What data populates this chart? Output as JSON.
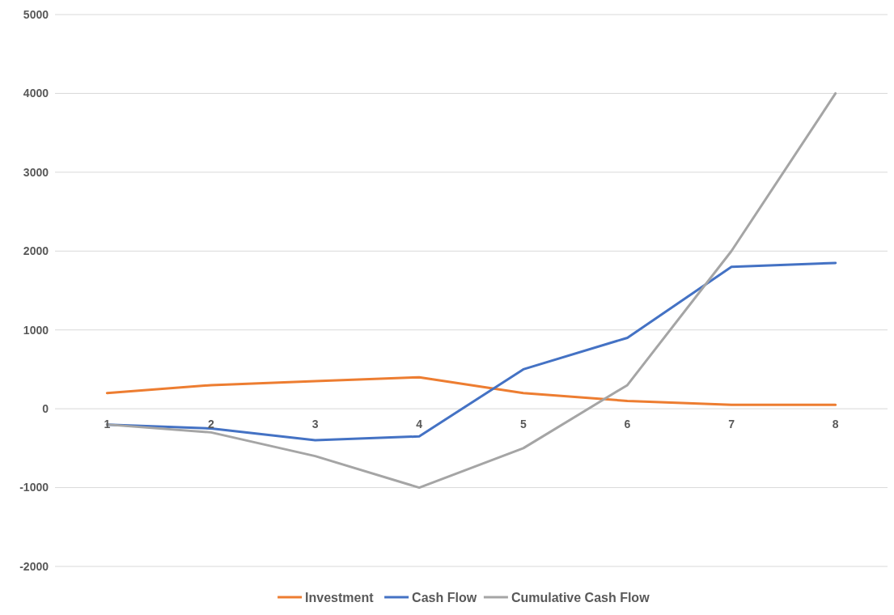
{
  "chart_data": {
    "type": "line",
    "categories": [
      "1",
      "2",
      "3",
      "4",
      "5",
      "6",
      "7",
      "8"
    ],
    "series": [
      {
        "name": "Investment",
        "color": "#ed7d31",
        "values": [
          200,
          300,
          350,
          400,
          200,
          100,
          50,
          50
        ]
      },
      {
        "name": "Cash Flow",
        "color": "#4472c4",
        "values": [
          -200,
          -250,
          -400,
          -350,
          500,
          900,
          1800,
          1850
        ]
      },
      {
        "name": "Cumulative Cash Flow",
        "color": "#a5a5a5",
        "values": [
          -200,
          -300,
          -600,
          -1000,
          -500,
          300,
          2000,
          4000
        ]
      }
    ],
    "ylim": [
      -2000,
      5000
    ],
    "yticks": [
      -2000,
      -1000,
      0,
      1000,
      2000,
      3000,
      4000,
      5000
    ],
    "grid": "y",
    "legend": "bottom",
    "marker": "none",
    "line_style": "solid"
  }
}
